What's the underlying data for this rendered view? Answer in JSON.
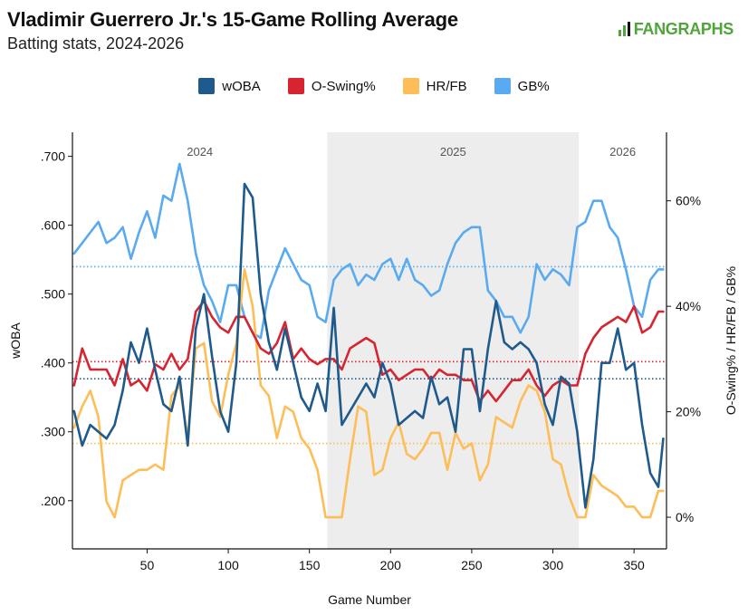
{
  "header": {
    "title": "Vladimir Guerrero Jr.'s 15-Game Rolling Average",
    "subtitle": "Batting stats, 2024-2026",
    "logo_text": "FANGRAPHS"
  },
  "colors": {
    "woba": "#1f5a8c",
    "oswing": "#d62530",
    "hrfb": "#fdbe57",
    "gb": "#5aaaf0",
    "shade": "#ededed"
  },
  "chart_data": {
    "type": "line",
    "xlabel": "Game Number",
    "ylabel_left": "wOBA",
    "ylabel_right": "O-Swing% / HR/FB / GB%",
    "xlim": [
      4,
      370
    ],
    "ylim_left": [
      0.13,
      0.735
    ],
    "ylim_right": [
      -6,
      73
    ],
    "x_ticks": [
      50,
      100,
      150,
      200,
      250,
      300,
      350
    ],
    "y_left_ticks": [
      ".200",
      ".300",
      ".400",
      ".500",
      ".600",
      ".700"
    ],
    "y_left_tick_values": [
      0.2,
      0.3,
      0.4,
      0.5,
      0.6,
      0.7
    ],
    "y_right_ticks": [
      "0%",
      "20%",
      "40%",
      "60%"
    ],
    "y_right_tick_values": [
      0,
      20,
      40,
      60
    ],
    "seasons": [
      {
        "label": "2024",
        "start": 4,
        "end": 161,
        "shaded": false
      },
      {
        "label": "2025",
        "start": 161,
        "end": 316,
        "shaded": true
      },
      {
        "label": "2026",
        "start": 316,
        "end": 370,
        "shaded": false
      }
    ],
    "averages": {
      "woba": 0.377,
      "oswing": 29.5,
      "hrfb": 14.0,
      "gb": 47.5
    },
    "grid": false,
    "legend_position": "top-center",
    "series": [
      {
        "key": "woba",
        "name": "wOBA",
        "axis": "left",
        "x": [
          5,
          10,
          15,
          20,
          25,
          30,
          35,
          40,
          45,
          50,
          55,
          60,
          65,
          70,
          75,
          80,
          85,
          90,
          95,
          100,
          105,
          110,
          115,
          120,
          125,
          130,
          135,
          140,
          145,
          150,
          155,
          160,
          165,
          170,
          175,
          180,
          185,
          190,
          195,
          200,
          205,
          210,
          215,
          220,
          225,
          230,
          235,
          240,
          245,
          250,
          255,
          260,
          265,
          270,
          275,
          280,
          285,
          290,
          295,
          300,
          305,
          310,
          315,
          320,
          325,
          330,
          335,
          340,
          345,
          350,
          355,
          360,
          365,
          368
        ],
        "y": [
          0.33,
          0.28,
          0.31,
          0.3,
          0.29,
          0.31,
          0.36,
          0.43,
          0.4,
          0.45,
          0.39,
          0.34,
          0.33,
          0.38,
          0.28,
          0.45,
          0.5,
          0.41,
          0.33,
          0.3,
          0.4,
          0.66,
          0.64,
          0.5,
          0.43,
          0.39,
          0.45,
          0.4,
          0.35,
          0.33,
          0.37,
          0.33,
          0.48,
          0.31,
          0.33,
          0.35,
          0.37,
          0.35,
          0.4,
          0.37,
          0.31,
          0.32,
          0.33,
          0.32,
          0.38,
          0.34,
          0.35,
          0.3,
          0.42,
          0.42,
          0.33,
          0.42,
          0.49,
          0.43,
          0.42,
          0.43,
          0.42,
          0.4,
          0.34,
          0.31,
          0.38,
          0.37,
          0.3,
          0.19,
          0.26,
          0.4,
          0.4,
          0.45,
          0.39,
          0.4,
          0.31,
          0.24,
          0.22,
          0.29
        ]
      },
      {
        "key": "oswing",
        "name": "O-Swing%",
        "axis": "right",
        "x": [
          5,
          10,
          15,
          20,
          25,
          30,
          35,
          40,
          45,
          50,
          55,
          60,
          65,
          70,
          75,
          80,
          85,
          90,
          95,
          100,
          105,
          110,
          115,
          120,
          125,
          130,
          135,
          140,
          145,
          150,
          155,
          160,
          165,
          170,
          175,
          180,
          185,
          190,
          195,
          200,
          205,
          210,
          215,
          220,
          225,
          230,
          235,
          240,
          245,
          250,
          255,
          260,
          265,
          270,
          275,
          280,
          285,
          290,
          295,
          300,
          305,
          310,
          315,
          320,
          325,
          330,
          335,
          340,
          345,
          350,
          355,
          360,
          365,
          368
        ],
        "y": [
          25,
          32,
          28,
          28,
          28,
          25,
          30,
          25,
          26,
          24,
          29,
          28,
          31,
          28,
          30,
          39,
          41,
          38,
          36,
          35,
          38,
          38,
          35,
          32,
          31,
          33,
          37,
          30,
          32,
          30,
          29,
          30,
          30,
          28,
          32,
          33,
          34,
          33,
          27,
          28,
          26,
          27,
          28,
          28,
          26,
          28,
          27,
          27,
          26,
          26,
          22,
          24,
          22,
          24,
          26,
          26,
          28,
          25,
          23,
          25,
          26,
          25,
          25,
          31,
          34,
          36,
          37,
          38,
          37,
          40,
          35,
          36,
          39,
          39
        ]
      },
      {
        "key": "hrfb",
        "name": "HR/FB",
        "axis": "right",
        "x": [
          5,
          10,
          15,
          20,
          25,
          30,
          35,
          40,
          45,
          50,
          55,
          60,
          65,
          70,
          75,
          80,
          85,
          90,
          95,
          100,
          105,
          110,
          115,
          120,
          125,
          130,
          135,
          140,
          145,
          150,
          155,
          160,
          165,
          170,
          175,
          180,
          185,
          190,
          195,
          200,
          205,
          210,
          215,
          220,
          225,
          230,
          235,
          240,
          245,
          250,
          255,
          260,
          265,
          270,
          275,
          280,
          285,
          290,
          295,
          300,
          305,
          310,
          315,
          320,
          325,
          330,
          335,
          340,
          345,
          350,
          355,
          360,
          365,
          368
        ],
        "y": [
          17,
          21,
          24,
          19,
          3,
          0,
          7,
          8,
          9,
          9,
          10,
          9,
          23,
          25,
          15,
          32,
          33,
          22,
          19,
          27,
          33,
          47,
          40,
          25,
          23,
          15,
          21,
          20,
          15,
          13,
          9,
          0,
          0,
          0,
          11,
          21,
          20,
          8,
          9,
          15,
          18,
          12,
          11,
          13,
          16,
          16,
          9,
          16,
          13,
          14,
          7,
          10,
          19,
          18,
          17,
          22,
          25,
          24,
          20,
          11,
          10,
          4,
          0,
          0,
          8,
          6,
          5,
          4,
          2,
          2,
          0,
          0,
          5,
          5
        ]
      },
      {
        "key": "gb",
        "name": "GB%",
        "axis": "right",
        "x": [
          5,
          10,
          15,
          20,
          25,
          30,
          35,
          40,
          45,
          50,
          55,
          60,
          65,
          70,
          75,
          80,
          85,
          90,
          95,
          100,
          105,
          110,
          115,
          120,
          125,
          130,
          135,
          140,
          145,
          150,
          155,
          160,
          165,
          170,
          175,
          180,
          185,
          190,
          195,
          200,
          205,
          210,
          215,
          220,
          225,
          230,
          235,
          240,
          245,
          250,
          255,
          260,
          265,
          270,
          275,
          280,
          285,
          290,
          295,
          300,
          305,
          310,
          315,
          320,
          325,
          330,
          335,
          340,
          345,
          350,
          355,
          360,
          365,
          368
        ],
        "y": [
          50,
          52,
          54,
          56,
          52,
          53,
          55,
          49,
          54,
          58,
          53,
          61,
          60,
          67,
          60,
          50,
          44,
          41,
          37,
          44,
          44,
          38,
          35,
          34,
          43,
          47,
          51,
          48,
          45,
          44,
          38,
          37,
          45,
          47,
          48,
          44,
          46,
          45,
          48,
          49,
          45,
          49,
          45,
          44,
          42,
          43,
          48,
          52,
          54,
          55,
          55,
          43,
          41,
          38,
          38,
          35,
          38,
          48,
          45,
          47,
          46,
          44,
          55,
          56,
          60,
          60,
          55,
          53,
          47,
          40,
          38,
          45,
          47,
          47
        ]
      }
    ]
  }
}
